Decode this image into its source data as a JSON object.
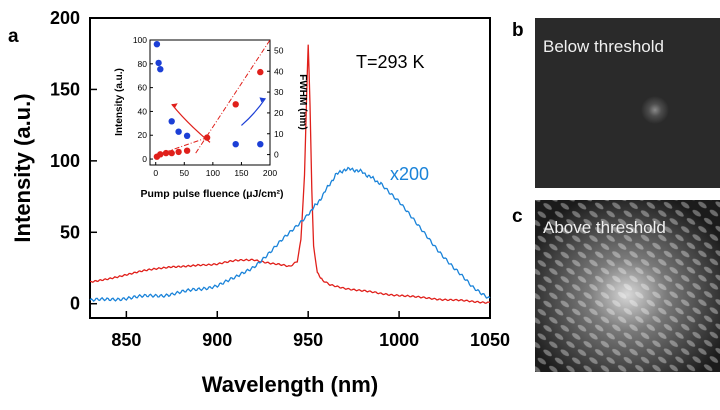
{
  "panel_labels": {
    "a": "a",
    "b": "b",
    "c": "c"
  },
  "annotations": {
    "temperature": "T=293 K",
    "scale_note": "x200"
  },
  "photos": {
    "below": {
      "caption": "Below threshold"
    },
    "above": {
      "caption": "Above threshold"
    }
  },
  "colors": {
    "red_series": "#e0201b",
    "blue_series": "#1a83d9",
    "inset_blue": "#1c3fd6",
    "inset_red": "#e0201b"
  },
  "chart_data": [
    {
      "type": "line",
      "title": "",
      "xlabel": "Wavelength (nm)",
      "ylabel": "Intensity (a.u.)",
      "xlim": [
        830,
        1050
      ],
      "ylim": [
        -10,
        200
      ],
      "xticks": [
        850,
        900,
        950,
        1000,
        1050
      ],
      "yticks": [
        0,
        50,
        100,
        150,
        200
      ],
      "series": [
        {
          "color": "#e0201b",
          "x": [
            830,
            845,
            860,
            875,
            890,
            900,
            910,
            920,
            930,
            940,
            944,
            946,
            948,
            949,
            950,
            951,
            952,
            953,
            955,
            958,
            962,
            970,
            980,
            990,
            1000,
            1010,
            1020,
            1030,
            1040,
            1050
          ],
          "y": [
            15,
            19,
            23,
            26,
            27,
            28,
            30,
            31,
            28,
            26,
            30,
            45,
            90,
            140,
            182,
            140,
            80,
            40,
            22,
            16,
            13,
            11,
            9,
            7,
            6,
            4.5,
            3.5,
            2.5,
            1.5,
            1
          ]
        },
        {
          "color": "#1a83d9",
          "x": [
            830,
            850,
            870,
            890,
            900,
            910,
            920,
            930,
            940,
            950,
            955,
            960,
            965,
            970,
            975,
            980,
            985,
            990,
            1000,
            1010,
            1020,
            1030,
            1040,
            1050
          ],
          "y": [
            2,
            4,
            6,
            10,
            13,
            18,
            26,
            37,
            50,
            63,
            70,
            80,
            90,
            94,
            94,
            92,
            88,
            84,
            72,
            55,
            40,
            25,
            12,
            4
          ]
        }
      ]
    },
    {
      "type": "scatter",
      "title": "",
      "xlabel": "Pump pulse fluence (μJ/cm²)",
      "ylabel": "Intensity (a.u.)",
      "y2label": "FWHM (nm)",
      "xlim": [
        -10,
        200
      ],
      "ylim": [
        -5,
        100
      ],
      "y2lim": [
        -5,
        55
      ],
      "xticks": [
        0,
        50,
        100,
        150,
        200
      ],
      "yticks": [
        0,
        20,
        40,
        60,
        80,
        100
      ],
      "y2ticks": [
        0,
        10,
        20,
        30,
        40,
        50
      ],
      "series": [
        {
          "color": "#e0201b",
          "axis": "left",
          "x": [
            2,
            8,
            18,
            28,
            40,
            55,
            90,
            140,
            183
          ],
          "y": [
            2,
            4,
            5,
            5,
            6,
            7,
            18,
            46,
            73
          ]
        },
        {
          "color": "#1c3fd6",
          "axis": "right",
          "x": [
            2,
            5,
            8,
            28,
            40,
            55,
            140,
            183
          ],
          "y": [
            53,
            44,
            41,
            16,
            11,
            9,
            5,
            5
          ]
        }
      ]
    }
  ]
}
